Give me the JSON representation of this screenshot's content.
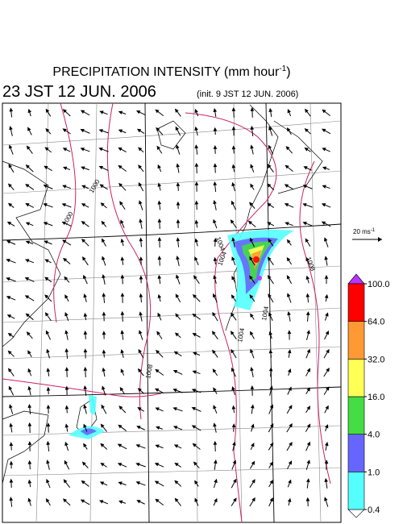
{
  "header": {
    "title": "PRECIPITATION INTENSITY (mm hour",
    "title_sup": "-1",
    "title_close": ")",
    "valid": "23 JST 12 JUN. 2006",
    "init": "(init. 9 JST 12 JUN. 2006)"
  },
  "scale": {
    "label": "20 ms",
    "label_sup": "-1"
  },
  "colorbar": {
    "levels": [
      {
        "value": 0.4,
        "label": "0.4"
      },
      {
        "value": 1,
        "label": "1.0"
      },
      {
        "value": 4,
        "label": "4.0"
      },
      {
        "value": 16,
        "label": "16.0"
      },
      {
        "value": 32,
        "label": "32.0"
      },
      {
        "value": 64,
        "label": "64.0"
      },
      {
        "value": 100,
        "label": "100.0"
      }
    ],
    "colors": [
      "#ffffff",
      "#55ffff",
      "#6666ff",
      "#44dd44",
      "#ffff55",
      "#ff9933",
      "#ff0000",
      "#bb33ff"
    ]
  },
  "map": {
    "contours": [
      "1000",
      "1000",
      "1004",
      "1004",
      "1008",
      "1008",
      "1004",
      "1004"
    ]
  }
}
